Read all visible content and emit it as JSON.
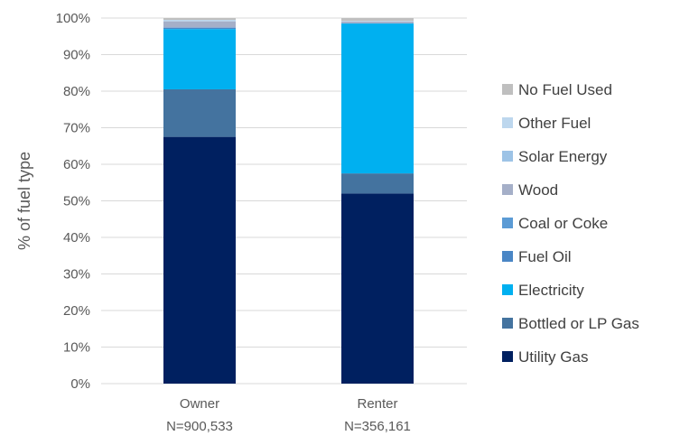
{
  "chart_data": {
    "type": "bar",
    "stacked": true,
    "title": "",
    "xlabel": "",
    "ylabel": "% of fuel type",
    "ylim": [
      0,
      100
    ],
    "yticks": [
      0,
      10,
      20,
      30,
      40,
      50,
      60,
      70,
      80,
      90,
      100
    ],
    "ytick_suffix": "%",
    "grid": true,
    "legend_position": "right",
    "categories": [
      "Owner",
      "Renter"
    ],
    "category_sublabels": [
      "N=900,533",
      "N=356,161"
    ],
    "series": [
      {
        "name": "Utility Gas",
        "color": "#002060",
        "values": [
          67.5,
          52.0
        ]
      },
      {
        "name": "Bottled or LP Gas",
        "color": "#44739F",
        "values": [
          13.0,
          5.5
        ]
      },
      {
        "name": "Electricity",
        "color": "#00B0F0",
        "values": [
          16.5,
          41.0
        ]
      },
      {
        "name": "Fuel Oil",
        "color": "#4A86C5",
        "values": [
          0.3,
          0.1
        ]
      },
      {
        "name": "Coal or Coke",
        "color": "#5B9BD5",
        "values": [
          0.1,
          0.0
        ]
      },
      {
        "name": "Wood",
        "color": "#A5AFC8",
        "values": [
          1.7,
          0.4
        ]
      },
      {
        "name": "Solar Energy",
        "color": "#9DC3E6",
        "values": [
          0.1,
          0.0
        ]
      },
      {
        "name": "Other Fuel",
        "color": "#BDD7EE",
        "values": [
          0.3,
          0.2
        ]
      },
      {
        "name": "No Fuel Used",
        "color": "#BFBFBF",
        "values": [
          0.5,
          0.8
        ]
      }
    ]
  }
}
